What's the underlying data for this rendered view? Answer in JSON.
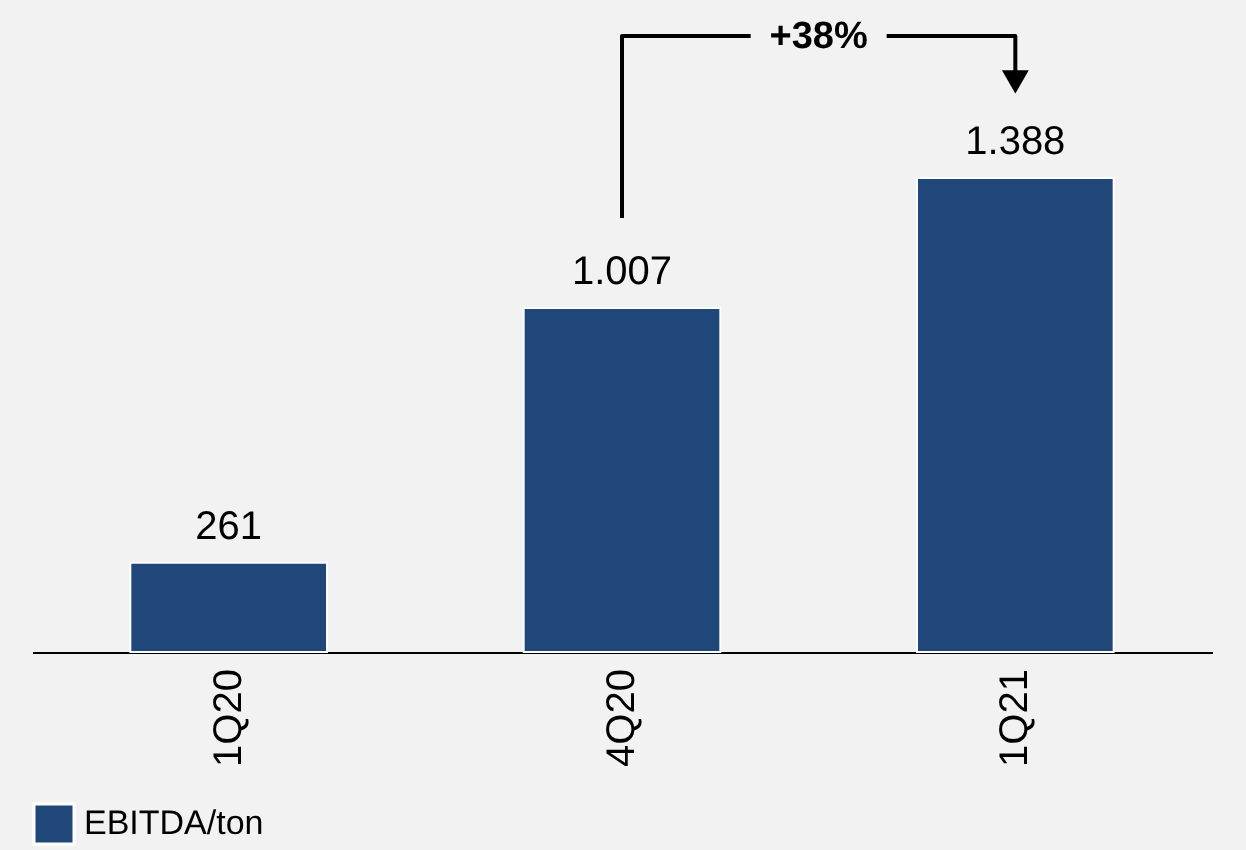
{
  "chart_data": {
    "type": "bar",
    "categories": [
      "1Q20",
      "4Q20",
      "1Q21"
    ],
    "series": [
      {
        "name": "EBITDA/ton",
        "color": "#1f477a",
        "values": [
          261,
          1007,
          1388
        ],
        "value_labels": [
          "261",
          "1.007",
          "1.388"
        ]
      }
    ],
    "annotations": [
      "+38%"
    ],
    "legend": "bottom",
    "grid": false
  }
}
